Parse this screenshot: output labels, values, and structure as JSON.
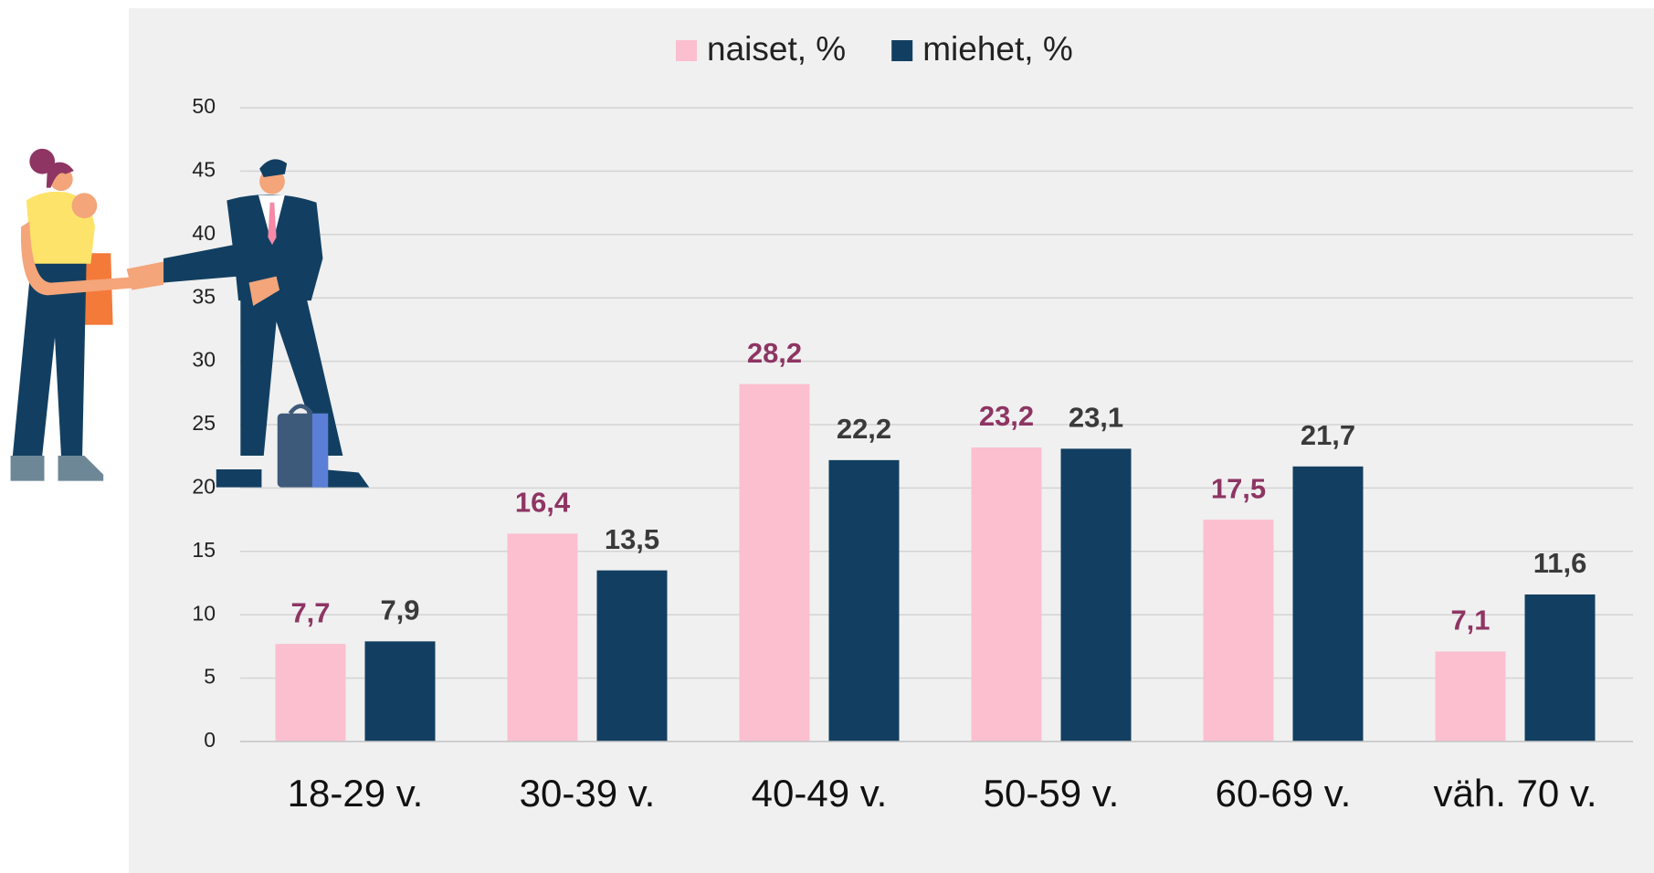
{
  "chart_data": {
    "type": "bar",
    "categories": [
      "18-29 v.",
      "30-39 v.",
      "40-49 v.",
      "50-59 v.",
      "60-69 v.",
      "väh. 70 v."
    ],
    "series": [
      {
        "name": "naiset, %",
        "color": "#fbbfcf",
        "label_color": "#8e3563",
        "values": [
          7.7,
          16.4,
          28.2,
          23.2,
          17.5,
          7.1
        ],
        "value_labels": [
          "7,7",
          "16,4",
          "28,2",
          "23,2",
          "17,5",
          "7,1"
        ]
      },
      {
        "name": "miehet, %",
        "color": "#123f61",
        "label_color": "#3a3a3a",
        "values": [
          7.9,
          13.5,
          22.2,
          23.1,
          21.7,
          11.6
        ],
        "value_labels": [
          "7,9",
          "13,5",
          "22,2",
          "23,1",
          "21,7",
          "11,6"
        ]
      }
    ],
    "ylim": [
      0,
      50
    ],
    "yticks": [
      0,
      5,
      10,
      15,
      20,
      25,
      30,
      35,
      40,
      45,
      50
    ],
    "grid": true,
    "legend": "top"
  }
}
